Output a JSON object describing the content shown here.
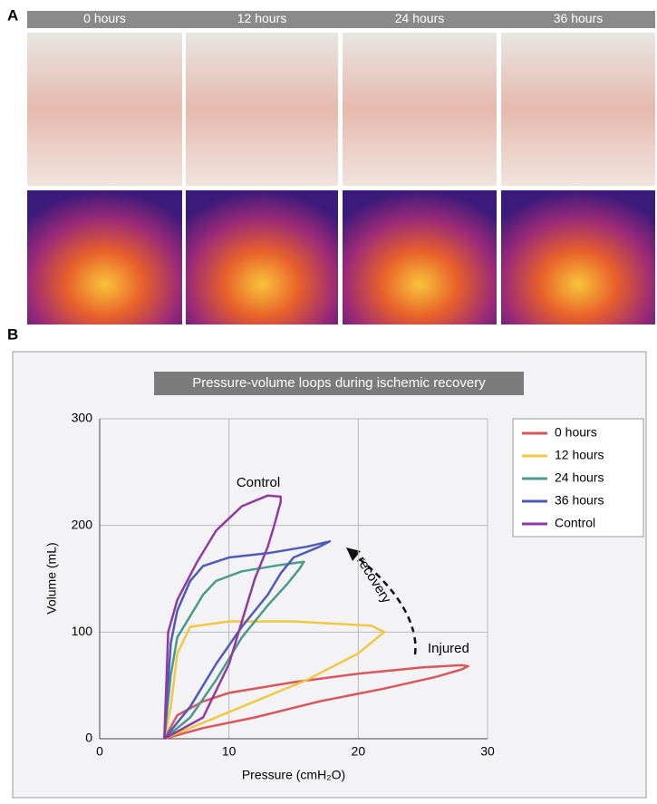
{
  "panel_a": {
    "label": "A",
    "columns": [
      "0 hours",
      "12 hours",
      "24 hours",
      "36 hours"
    ]
  },
  "panel_b": {
    "label": "B"
  },
  "chart_data": {
    "type": "line",
    "title": "Pressure-volume loops during ischemic recovery",
    "x_label": "Pressure (cmH₂O)",
    "y_label": "Volume (mL)",
    "xlim": [
      0,
      30
    ],
    "xticks": [
      0,
      10,
      20,
      30
    ],
    "ylim": [
      0,
      300
    ],
    "yticks": [
      0,
      100,
      200,
      300
    ],
    "grid": true,
    "legend": "right",
    "annotations": [
      "Control",
      "recovery",
      "Injured"
    ],
    "series": [
      {
        "name": "0 hours",
        "color": "#d9575a",
        "x": [
          5,
          8,
          12,
          17,
          22,
          26,
          28,
          28.5,
          28,
          25,
          20,
          15,
          10,
          8,
          6,
          5
        ],
        "values": [
          0,
          10,
          20,
          35,
          47,
          58,
          65,
          68,
          69,
          67,
          61,
          53,
          43,
          35,
          22,
          0
        ]
      },
      {
        "name": "12 hours",
        "color": "#f2c744",
        "x": [
          5,
          8,
          12,
          16,
          20,
          22,
          21,
          15,
          10,
          7,
          6,
          5.5,
          5
        ],
        "values": [
          0,
          15,
          35,
          55,
          80,
          100,
          106,
          110,
          110,
          105,
          80,
          30,
          0
        ]
      },
      {
        "name": "24 hours",
        "color": "#4b9a8c",
        "x": [
          5,
          7,
          9,
          11,
          13,
          14.5,
          15.5,
          15.8,
          14,
          11,
          9,
          8,
          7,
          6,
          5.5,
          5
        ],
        "values": [
          0,
          20,
          55,
          95,
          125,
          145,
          160,
          166,
          163,
          157,
          148,
          135,
          115,
          95,
          60,
          0
        ]
      },
      {
        "name": "36 hours",
        "color": "#4d5bb8",
        "x": [
          5,
          7,
          9,
          11,
          13,
          14,
          15,
          17,
          17.8,
          16,
          13,
          10,
          8,
          7,
          6,
          5.5,
          5
        ],
        "values": [
          0,
          30,
          70,
          105,
          135,
          155,
          170,
          180,
          185,
          180,
          174,
          170,
          162,
          148,
          120,
          90,
          0
        ]
      },
      {
        "name": "Control",
        "color": "#913a9f",
        "x": [
          5,
          8,
          10,
          11,
          12,
          13,
          13.5,
          14,
          14,
          13,
          11,
          9,
          7.5,
          6,
          5.3,
          5
        ],
        "values": [
          0,
          20,
          70,
          110,
          150,
          180,
          200,
          222,
          227,
          228,
          218,
          195,
          165,
          130,
          100,
          0
        ]
      }
    ]
  }
}
